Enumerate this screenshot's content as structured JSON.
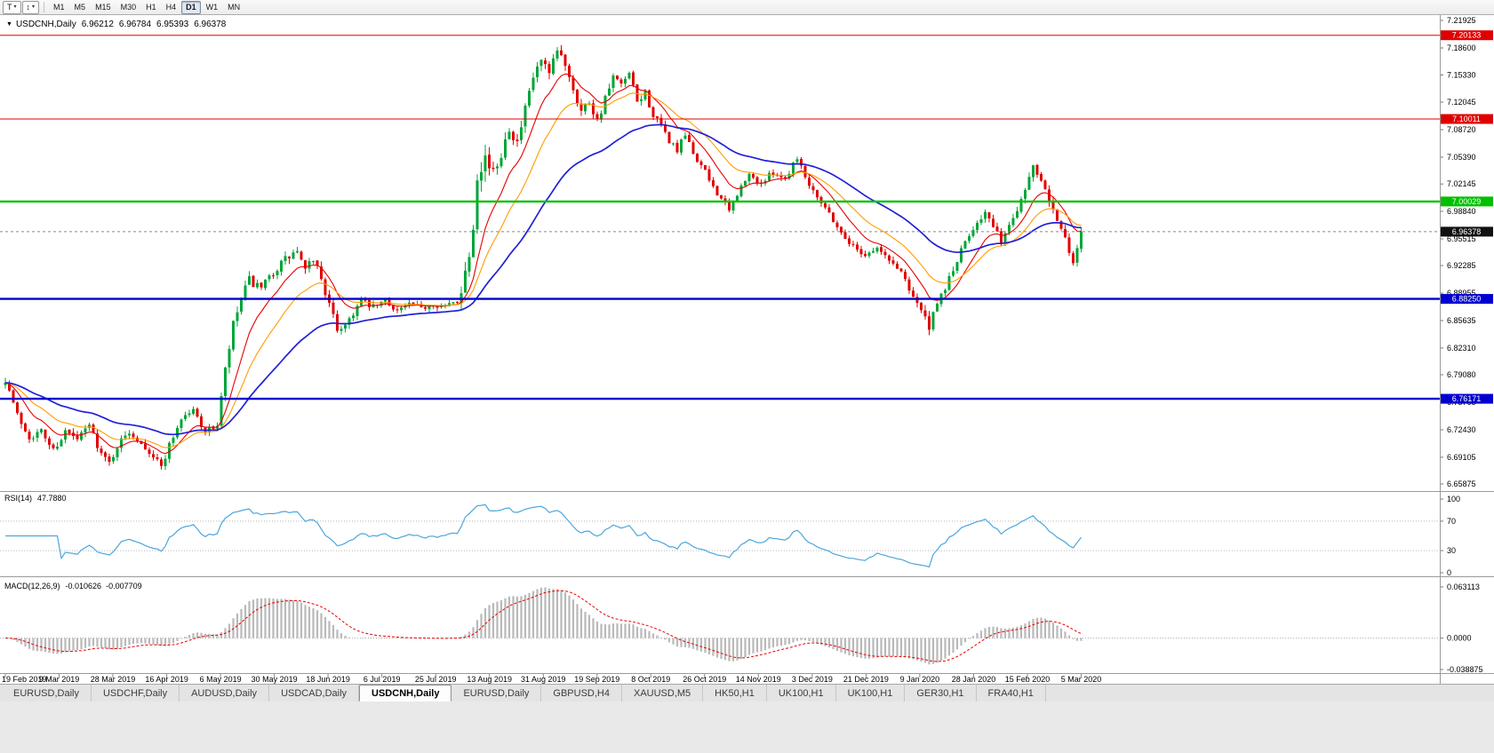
{
  "toolbar": {
    "buttons": [
      {
        "name": "templates-button",
        "label": "T",
        "caret": true
      },
      {
        "name": "chart-tools-button",
        "label": "↕",
        "caret": true
      }
    ],
    "timeframes": [
      "M1",
      "M5",
      "M15",
      "M30",
      "H1",
      "H4",
      "D1",
      "W1",
      "MN"
    ],
    "active_timeframe": "D1"
  },
  "chart": {
    "symbol": "USDCNH,Daily",
    "open": "6.96212",
    "high": "6.96784",
    "low": "6.95393",
    "close": "6.96378",
    "current_price": "6.96378",
    "price_axis_ticks": [
      "7.21925",
      "7.18600",
      "7.15330",
      "7.12045",
      "7.08720",
      "7.05390",
      "7.02145",
      "6.98840",
      "6.95515",
      "6.92285",
      "6.88955",
      "6.85635",
      "6.82310",
      "6.79080",
      "6.75765",
      "6.72430",
      "6.69105",
      "6.65875"
    ],
    "levels": [
      {
        "label": "7.20133",
        "value": 7.20133,
        "color": "#e00000",
        "width": 1
      },
      {
        "label": "7.10011",
        "value": 7.10011,
        "color": "#e00000",
        "width": 1
      },
      {
        "label": "7.00029",
        "value": 7.00029,
        "color": "#00c000",
        "width": 2.4
      },
      {
        "label": "6.88250",
        "value": 6.8825,
        "color": "#0000d0",
        "width": 2.4
      },
      {
        "label": "6.76171",
        "value": 6.76171,
        "color": "#0000d0",
        "width": 2.4
      }
    ],
    "dates": [
      "19 Feb 2019",
      "9 Mar 2019",
      "28 Mar 2019",
      "16 Apr 2019",
      "6 May 2019",
      "30 May 2019",
      "18 Jun 2019",
      "6 Jul 2019",
      "25 Jul 2019",
      "13 Aug 2019",
      "31 Aug 2019",
      "19 Sep 2019",
      "8 Oct 2019",
      "26 Oct 2019",
      "14 Nov 2019",
      "3 Dec 2019",
      "21 Dec 2019",
      "9 Jan 2020",
      "28 Jan 2020",
      "15 Feb 2020",
      "5 Mar 2020"
    ]
  },
  "chart_data": {
    "type": "candlestick",
    "symbol": "USDCNH",
    "timeframe": "Daily",
    "x_range_dates": [
      "19 Feb 2019",
      "5 Mar 2020"
    ],
    "y_axis_range": [
      6.65875,
      7.21925
    ],
    "num_candles": 270,
    "last_ohlc": {
      "open": 6.96212,
      "high": 6.96784,
      "low": 6.95393,
      "close": 6.96378
    },
    "close_waypoints": [
      [
        0,
        6.786
      ],
      [
        3,
        6.742
      ],
      [
        6,
        6.716
      ],
      [
        9,
        6.722
      ],
      [
        12,
        6.7
      ],
      [
        15,
        6.722
      ],
      [
        18,
        6.712
      ],
      [
        21,
        6.73
      ],
      [
        24,
        6.695
      ],
      [
        26,
        6.684
      ],
      [
        28,
        6.705
      ],
      [
        31,
        6.722
      ],
      [
        34,
        6.71
      ],
      [
        37,
        6.692
      ],
      [
        39,
        6.68
      ],
      [
        41,
        6.706
      ],
      [
        44,
        6.738
      ],
      [
        47,
        6.748
      ],
      [
        50,
        6.722
      ],
      [
        53,
        6.73
      ],
      [
        55,
        6.795
      ],
      [
        57,
        6.85
      ],
      [
        59,
        6.882
      ],
      [
        61,
        6.905
      ],
      [
        64,
        6.893
      ],
      [
        67,
        6.915
      ],
      [
        70,
        6.93
      ],
      [
        73,
        6.94
      ],
      [
        75,
        6.915
      ],
      [
        77,
        6.932
      ],
      [
        79,
        6.908
      ],
      [
        81,
        6.874
      ],
      [
        83,
        6.846
      ],
      [
        85,
        6.852
      ],
      [
        87,
        6.866
      ],
      [
        89,
        6.88
      ],
      [
        92,
        6.872
      ],
      [
        95,
        6.88
      ],
      [
        98,
        6.869
      ],
      [
        101,
        6.876
      ],
      [
        104,
        6.871
      ],
      [
        107,
        6.877
      ],
      [
        110,
        6.873
      ],
      [
        113,
        6.88
      ],
      [
        114,
        6.895
      ],
      [
        115,
        6.915
      ],
      [
        116,
        6.94
      ],
      [
        117,
        6.975
      ],
      [
        118,
        7.04
      ],
      [
        120,
        7.055
      ],
      [
        122,
        7.032
      ],
      [
        124,
        7.06
      ],
      [
        126,
        7.092
      ],
      [
        128,
        7.07
      ],
      [
        130,
        7.11
      ],
      [
        132,
        7.15
      ],
      [
        134,
        7.17
      ],
      [
        136,
        7.152
      ],
      [
        138,
        7.182
      ],
      [
        140,
        7.168
      ],
      [
        142,
        7.138
      ],
      [
        144,
        7.11
      ],
      [
        146,
        7.122
      ],
      [
        148,
        7.098
      ],
      [
        150,
        7.124
      ],
      [
        152,
        7.15
      ],
      [
        154,
        7.14
      ],
      [
        156,
        7.154
      ],
      [
        158,
        7.12
      ],
      [
        160,
        7.132
      ],
      [
        162,
        7.104
      ],
      [
        164,
        7.09
      ],
      [
        166,
        7.074
      ],
      [
        168,
        7.062
      ],
      [
        170,
        7.08
      ],
      [
        172,
        7.058
      ],
      [
        174,
        7.044
      ],
      [
        176,
        7.026
      ],
      [
        179,
        7.004
      ],
      [
        181,
        6.988
      ],
      [
        183,
        7.01
      ],
      [
        186,
        7.032
      ],
      [
        189,
        7.022
      ],
      [
        192,
        7.036
      ],
      [
        195,
        7.028
      ],
      [
        198,
        7.056
      ],
      [
        200,
        7.03
      ],
      [
        203,
        7.008
      ],
      [
        206,
        6.986
      ],
      [
        209,
        6.962
      ],
      [
        212,
        6.946
      ],
      [
        215,
        6.936
      ],
      [
        218,
        6.944
      ],
      [
        221,
        6.929
      ],
      [
        224,
        6.916
      ],
      [
        226,
        6.896
      ],
      [
        228,
        6.879
      ],
      [
        230,
        6.858
      ],
      [
        231,
        6.848
      ],
      [
        233,
        6.874
      ],
      [
        235,
        6.897
      ],
      [
        237,
        6.917
      ],
      [
        239,
        6.94
      ],
      [
        241,
        6.96
      ],
      [
        243,
        6.977
      ],
      [
        245,
        6.987
      ],
      [
        247,
        6.968
      ],
      [
        249,
        6.953
      ],
      [
        251,
        6.97
      ],
      [
        253,
        6.992
      ],
      [
        255,
        7.017
      ],
      [
        257,
        7.044
      ],
      [
        259,
        7.03
      ],
      [
        261,
        7.005
      ],
      [
        263,
        6.98
      ],
      [
        265,
        6.954
      ],
      [
        266,
        6.937
      ],
      [
        267,
        6.922
      ],
      [
        268,
        6.947
      ],
      [
        269,
        6.96378
      ]
    ],
    "volatility_waypoints": [
      [
        0,
        0.011
      ],
      [
        20,
        0.01
      ],
      [
        40,
        0.01
      ],
      [
        52,
        0.008
      ],
      [
        55,
        0.015
      ],
      [
        62,
        0.013
      ],
      [
        72,
        0.012
      ],
      [
        82,
        0.013
      ],
      [
        90,
        0.009
      ],
      [
        105,
        0.008
      ],
      [
        113,
        0.009
      ],
      [
        115,
        0.022
      ],
      [
        118,
        0.032
      ],
      [
        121,
        0.02
      ],
      [
        127,
        0.016
      ],
      [
        134,
        0.015
      ],
      [
        142,
        0.013
      ],
      [
        152,
        0.011
      ],
      [
        165,
        0.01
      ],
      [
        180,
        0.009
      ],
      [
        192,
        0.008
      ],
      [
        198,
        0.011
      ],
      [
        204,
        0.008
      ],
      [
        216,
        0.008
      ],
      [
        224,
        0.009
      ],
      [
        231,
        0.013
      ],
      [
        240,
        0.01
      ],
      [
        250,
        0.009
      ],
      [
        257,
        0.011
      ],
      [
        264,
        0.013
      ],
      [
        269,
        0.011
      ]
    ],
    "moving_averages": [
      {
        "type": "ema",
        "period": 10,
        "color": "#e80000"
      },
      {
        "type": "ema",
        "period": 20,
        "color": "#ff9c00"
      },
      {
        "type": "ema",
        "period": 45,
        "color": "#2020d8"
      }
    ],
    "horizontal_levels": [
      7.20133,
      7.10011,
      7.00029,
      6.8825,
      6.76171
    ]
  },
  "rsi": {
    "name": "RSI(14)",
    "value": "47.7880",
    "period": 14,
    "color": "#4da6dd",
    "axis_ticks": [
      "100",
      "70",
      "30",
      "0"
    ],
    "range": [
      0,
      100
    ],
    "guide_levels": [
      70,
      30
    ]
  },
  "macd": {
    "name": "MACD(12,26,9)",
    "main_value": "-0.010626",
    "signal_value": "-0.007709",
    "fast": 12,
    "slow": 26,
    "signal": 9,
    "axis_ticks": [
      "0.063113",
      "0.0000",
      "-0.038875"
    ],
    "range": [
      -0.038875,
      0.063113
    ],
    "hist_color": "#b9b9b9",
    "signal_color": "#e80000"
  },
  "tabs": {
    "items": [
      "EURUSD,Daily",
      "USDCHF,Daily",
      "AUDUSD,Daily",
      "USDCAD,Daily",
      "USDCNH,Daily",
      "EURUSD,Daily",
      "GBPUSD,H4",
      "XAUUSD,M5",
      "HK50,H1",
      "UK100,H1",
      "UK100,H1",
      "GER30,H1",
      "FRA40,H1"
    ],
    "active_index": 4
  },
  "colors": {
    "bull": "#00a536",
    "bear": "#e00000",
    "background": "#ffffff",
    "separator": "#9a9a9a",
    "price_line": "#888888",
    "badge_current": "#111111",
    "axis_text": "#000000"
  }
}
